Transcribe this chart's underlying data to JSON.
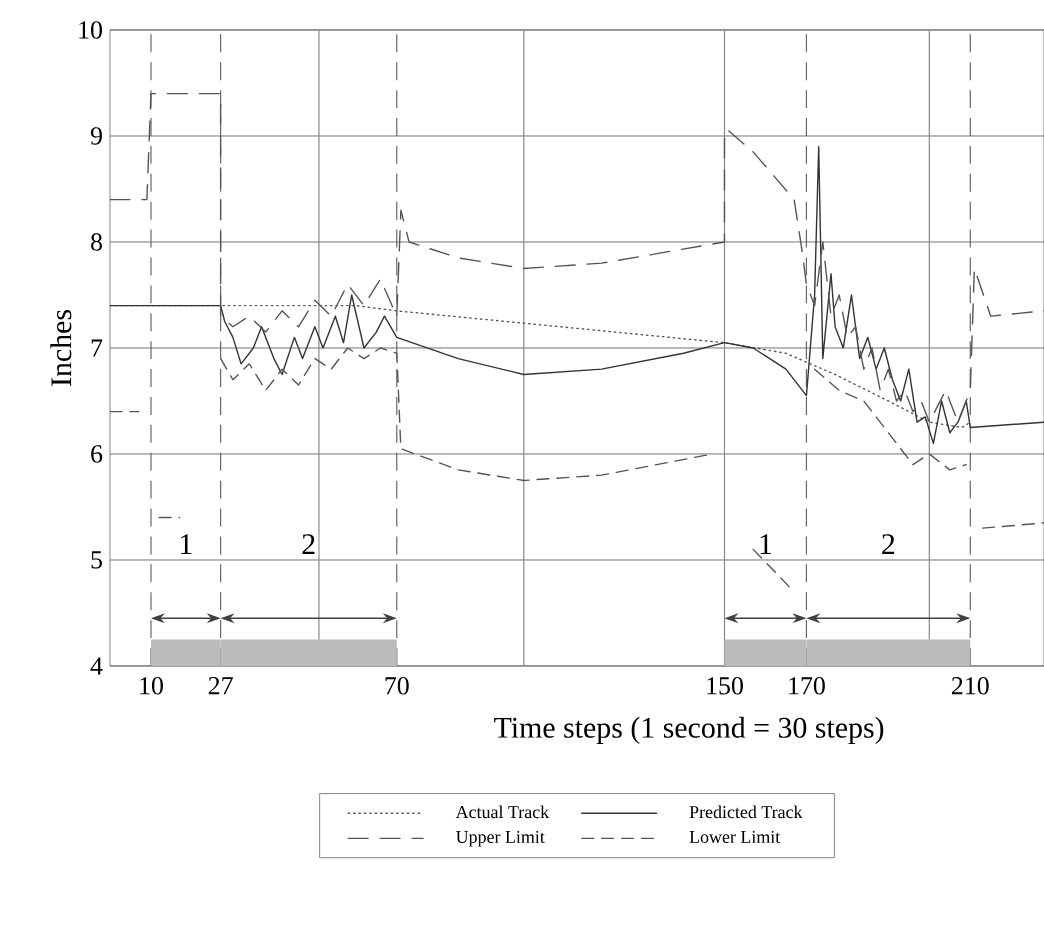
{
  "chart_data": {
    "type": "line",
    "xlabel": "Time steps (1 second = 30 steps)",
    "ylabel": "Inches",
    "xlim": [
      0,
      228
    ],
    "ylim": [
      4,
      10
    ],
    "xticks": [
      10,
      27,
      70,
      150,
      170,
      210
    ],
    "yticks": [
      4,
      5,
      6,
      7,
      8,
      9,
      10
    ],
    "grid": "y",
    "legend": "bottom",
    "series": [
      {
        "name": "Actual Track",
        "color": "#555555",
        "line_style": "dotted",
        "x": [
          0,
          27,
          40,
          60,
          70,
          150,
          165,
          177,
          190,
          200,
          208,
          210
        ],
        "values": [
          7.4,
          7.4,
          7.4,
          7.4,
          7.35,
          7.05,
          6.95,
          6.75,
          6.5,
          6.3,
          6.25,
          6.3
        ]
      },
      {
        "name": "Predicted Track",
        "color": "#333333",
        "line_style": "solid",
        "x": [
          0,
          27,
          28,
          30,
          32,
          35,
          37,
          40,
          42,
          45,
          47,
          50,
          52,
          55,
          57,
          59,
          62,
          65,
          67,
          70,
          85,
          101,
          120,
          140,
          150,
          157,
          165,
          170,
          172,
          173,
          174,
          176,
          177,
          179,
          181,
          183,
          185,
          187,
          189,
          191,
          193,
          195,
          197,
          199,
          201,
          203,
          205,
          207,
          209,
          210,
          228
        ],
        "values": [
          7.4,
          7.4,
          7.25,
          7.1,
          6.85,
          7.0,
          7.2,
          6.9,
          6.75,
          7.1,
          6.9,
          7.2,
          7.0,
          7.3,
          7.05,
          7.5,
          7.0,
          7.15,
          7.3,
          7.1,
          6.9,
          6.75,
          6.8,
          6.95,
          7.05,
          7.0,
          6.8,
          6.55,
          7.5,
          8.9,
          6.9,
          7.7,
          7.2,
          7.0,
          7.5,
          6.9,
          7.1,
          6.8,
          7.0,
          6.7,
          6.5,
          6.8,
          6.3,
          6.35,
          6.1,
          6.5,
          6.2,
          6.3,
          6.5,
          6.25,
          6.3
        ]
      },
      {
        "name": "Upper Limit",
        "color": "#555555",
        "line_style": "dashed",
        "x": [
          0,
          9,
          10,
          27,
          27,
          30,
          34,
          38,
          42,
          46,
          50,
          54,
          58,
          62,
          66,
          70,
          71,
          73,
          85,
          101,
          120,
          150,
          150,
          151,
          157,
          167,
          169,
          170,
          172,
          174,
          176,
          178,
          180,
          182,
          184,
          186,
          188,
          190,
          192,
          194,
          196,
          198,
          200,
          204,
          207,
          210,
          211,
          215,
          228
        ],
        "values": [
          8.4,
          8.4,
          9.4,
          9.4,
          7.3,
          7.2,
          7.3,
          7.15,
          7.35,
          7.2,
          7.45,
          7.3,
          7.6,
          7.4,
          7.65,
          7.3,
          8.3,
          8.0,
          7.85,
          7.75,
          7.8,
          8.0,
          9.05,
          9.05,
          8.85,
          8.4,
          7.9,
          7.6,
          7.4,
          8.0,
          7.3,
          7.5,
          7.1,
          7.2,
          6.8,
          7.0,
          6.6,
          6.8,
          6.5,
          6.6,
          6.4,
          6.5,
          6.3,
          6.6,
          6.3,
          6.6,
          7.75,
          7.3,
          7.35
        ]
      },
      {
        "name": "Lower Limit",
        "color": "#555555",
        "line_style": "dashed",
        "x": [
          0,
          7,
          8,
          12,
          17,
          20,
          27,
          30,
          34,
          38,
          42,
          46,
          50,
          54,
          58,
          62,
          66,
          70,
          71,
          85,
          101,
          120,
          147,
          150,
          157,
          167,
          170,
          172,
          178,
          184,
          190,
          196,
          200,
          205,
          209,
          210,
          213,
          228
        ],
        "values": [
          6.4,
          6.4,
          null,
          5.4,
          5.4,
          null,
          6.9,
          6.7,
          6.85,
          6.6,
          6.8,
          6.65,
          6.9,
          6.8,
          7.0,
          6.9,
          7.0,
          6.95,
          6.05,
          5.85,
          5.75,
          5.8,
          6.0,
          null,
          5.1,
          4.7,
          null,
          6.8,
          6.6,
          6.5,
          6.2,
          5.9,
          6.0,
          5.85,
          5.9,
          null,
          5.3,
          5.35
        ]
      }
    ],
    "ref_lines": [
      {
        "axis": "x",
        "value": 51,
        "color": "#888888",
        "line_style": "solid"
      },
      {
        "axis": "x",
        "value": 101,
        "color": "#888888",
        "line_style": "solid"
      },
      {
        "axis": "x",
        "value": 150,
        "color": "#888888",
        "line_style": "solid"
      },
      {
        "axis": "x",
        "value": 200,
        "color": "#888888",
        "line_style": "solid"
      },
      {
        "axis": "x",
        "value": 10,
        "color": "#666666",
        "line_style": "dashed"
      },
      {
        "axis": "x",
        "value": 27,
        "color": "#666666",
        "line_style": "dashed"
      },
      {
        "axis": "x",
        "value": 70,
        "color": "#666666",
        "line_style": "dashed"
      },
      {
        "axis": "x",
        "value": 170,
        "color": "#666666",
        "line_style": "dashed"
      },
      {
        "axis": "x",
        "value": 210,
        "color": "#666666",
        "line_style": "dashed"
      }
    ],
    "bands": [
      {
        "axis": "x",
        "from": 10,
        "to": 27,
        "label": "1",
        "color": "#bbbbbb"
      },
      {
        "axis": "x",
        "from": 27,
        "to": 70,
        "label": "2",
        "color": "#bbbbbb"
      },
      {
        "axis": "x",
        "from": 150,
        "to": 170,
        "label": "1",
        "color": "#bbbbbb"
      },
      {
        "axis": "x",
        "from": 170,
        "to": 210,
        "label": "2",
        "color": "#bbbbbb"
      }
    ]
  }
}
